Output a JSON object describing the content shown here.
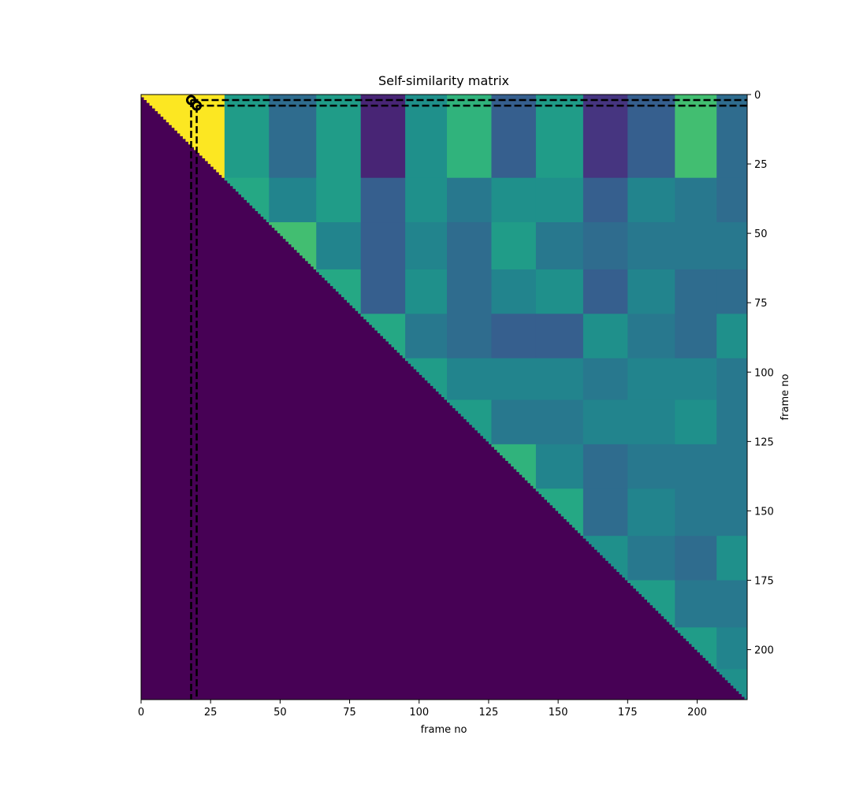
{
  "chart_data": {
    "type": "heatmap",
    "title": "Self-similarity matrix",
    "x_label": "frame no",
    "y_label": "frame no",
    "colormap": "viridis",
    "clim": [
      0,
      1
    ],
    "bins": [
      0,
      30,
      46,
      63,
      79,
      95,
      110,
      126,
      142,
      159,
      175,
      192,
      207,
      218
    ],
    "values": [
      [
        1.0,
        0.55,
        0.35,
        0.55,
        0.1,
        0.5,
        0.65,
        0.3,
        0.55,
        0.15,
        0.3,
        0.7,
        0.35
      ],
      [
        null,
        0.6,
        0.45,
        0.55,
        0.3,
        0.5,
        0.4,
        0.5,
        0.5,
        0.3,
        0.45,
        0.4,
        0.35
      ],
      [
        null,
        null,
        0.7,
        0.45,
        0.3,
        0.45,
        0.35,
        0.55,
        0.4,
        0.35,
        0.4,
        0.4,
        0.4
      ],
      [
        null,
        null,
        null,
        0.6,
        0.3,
        0.5,
        0.35,
        0.45,
        0.5,
        0.3,
        0.45,
        0.35,
        0.35
      ],
      [
        null,
        null,
        null,
        null,
        0.6,
        0.4,
        0.35,
        0.3,
        0.3,
        0.5,
        0.4,
        0.35,
        0.5
      ],
      [
        null,
        null,
        null,
        null,
        null,
        0.55,
        0.45,
        0.45,
        0.45,
        0.4,
        0.45,
        0.45,
        0.4
      ],
      [
        null,
        null,
        null,
        null,
        null,
        null,
        0.55,
        0.4,
        0.4,
        0.45,
        0.45,
        0.5,
        0.4
      ],
      [
        null,
        null,
        null,
        null,
        null,
        null,
        null,
        0.65,
        0.45,
        0.35,
        0.4,
        0.4,
        0.4
      ],
      [
        null,
        null,
        null,
        null,
        null,
        null,
        null,
        null,
        0.6,
        0.35,
        0.45,
        0.4,
        0.4
      ],
      [
        null,
        null,
        null,
        null,
        null,
        null,
        null,
        null,
        null,
        0.5,
        0.4,
        0.35,
        0.5
      ],
      [
        null,
        null,
        null,
        null,
        null,
        null,
        null,
        null,
        null,
        null,
        0.55,
        0.4,
        0.4
      ],
      [
        null,
        null,
        null,
        null,
        null,
        null,
        null,
        null,
        null,
        null,
        null,
        0.55,
        0.45
      ],
      [
        null,
        null,
        null,
        null,
        null,
        null,
        null,
        null,
        null,
        null,
        null,
        null,
        0.5
      ]
    ],
    "lower_value": 0,
    "highlight": {
      "x": [
        18,
        20
      ],
      "y": [
        2,
        4
      ]
    },
    "xlim": [
      0,
      218
    ],
    "ylim": [
      218,
      0
    ],
    "xticks": [
      0,
      25,
      50,
      75,
      100,
      125,
      150,
      175,
      200
    ],
    "yticks": [
      0,
      25,
      50,
      75,
      100,
      125,
      150,
      175,
      200
    ]
  }
}
